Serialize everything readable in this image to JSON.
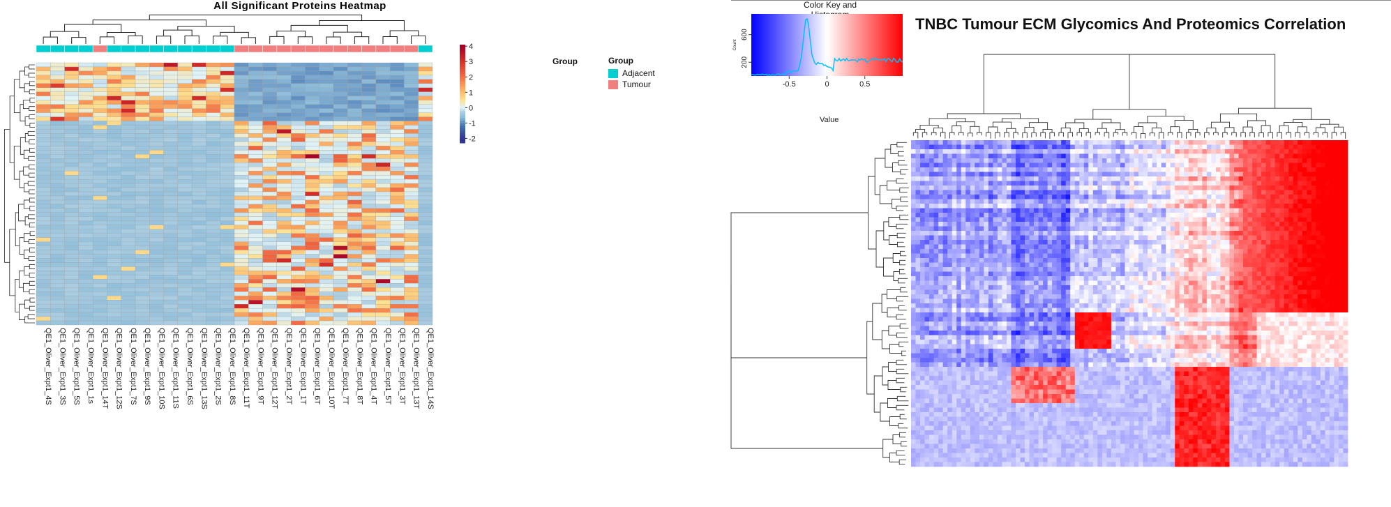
{
  "chart_data": [
    {
      "type": "heatmap",
      "title": "All Significant Proteins Heatmap",
      "columns": [
        "QE1_Oliver_Expt1_4S",
        "QE1_Oliver_Expt1_3S",
        "QE1_Oliver_Expt1_5S",
        "QE1_Oliver_Expt1_1s",
        "QE1_Oliver_Expt1_14T",
        "QE1_Oliver_Expt1_12S",
        "QE1_Oliver_Expt1_7S",
        "QE1_Oliver_Expt1_9S",
        "QE1_Oliver_Expt1_10S",
        "QE1_Oliver_Expt1_11S",
        "QE1_Oliver_Expt1_6S",
        "QE1_Oliver_Expt1_13S",
        "QE1_Oliver_Expt1_2S",
        "QE1_Oliver_Expt1_8S",
        "QE1_Oliver_Expt1_11T",
        "QE1_Oliver_Expt1_9T",
        "QE1_Oliver_Expt1_12T",
        "QE1_Oliver_Expt1_2T",
        "QE1_Oliver_Expt1_1T",
        "QE1_Oliver_Expt1_6T",
        "QE1_Oliver_Expt1_10T",
        "QE1_Oliver_Expt1_7T",
        "QE1_Oliver_Expt1_8T",
        "QE1_Oliver_Expt1_4T",
        "QE1_Oliver_Expt1_5T",
        "QE1_Oliver_Expt1_3T",
        "QE1_Oliver_Expt1_13T",
        "QE1_Oliver_Expt1_14S"
      ],
      "column_groups": [
        "Adjacent",
        "Adjacent",
        "Adjacent",
        "Adjacent",
        "Tumour",
        "Adjacent",
        "Adjacent",
        "Adjacent",
        "Adjacent",
        "Adjacent",
        "Adjacent",
        "Adjacent",
        "Adjacent",
        "Adjacent",
        "Tumour",
        "Tumour",
        "Tumour",
        "Tumour",
        "Tumour",
        "Tumour",
        "Tumour",
        "Tumour",
        "Tumour",
        "Tumour",
        "Tumour",
        "Tumour",
        "Tumour",
        "Adjacent"
      ],
      "legend": {
        "title": "Group",
        "items": [
          {
            "label": "Adjacent",
            "color": "#00CED1"
          },
          {
            "label": "Tumour",
            "color": "#F08080"
          }
        ]
      },
      "annotation_label": "Group",
      "color_scale": {
        "ticks": [
          4,
          3,
          2,
          1,
          0,
          -1,
          -2
        ],
        "low": "#313695",
        "mid": "#FFFFBF",
        "high": "#A50026"
      },
      "row_count": 63,
      "row_label_size": "tiny",
      "dendrogram": {
        "rows": true,
        "columns": true
      }
    },
    {
      "type": "heatmap",
      "title": "TNBC Tumour ECM Glycomics And Proteomics Correlation",
      "color_key": {
        "title": "Color Key and Histogram",
        "xlabel": "Value",
        "ylabel": "Count",
        "x_ticks": [
          "-0.5",
          "0",
          "0.5"
        ],
        "y_ticks": [
          "200",
          "600"
        ],
        "colors": {
          "low": "#0000FF",
          "mid": "#FFFFFF",
          "high": "#FF0000"
        },
        "histogram_color": "#00BFFF"
      },
      "value_range": [
        -1,
        1
      ],
      "dendrogram": {
        "rows": true,
        "columns": true
      }
    }
  ]
}
